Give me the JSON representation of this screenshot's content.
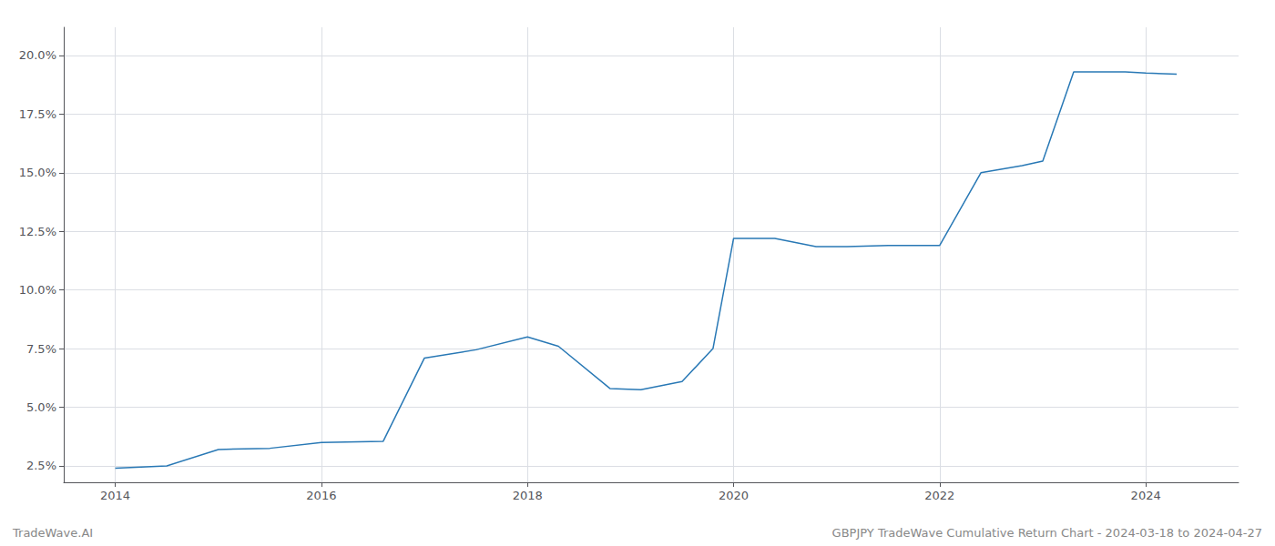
{
  "chart_data": {
    "type": "line",
    "x": [
      2014.0,
      2014.5,
      2015.0,
      2015.5,
      2016.0,
      2016.6,
      2017.0,
      2017.5,
      2018.0,
      2018.3,
      2018.8,
      2019.1,
      2019.5,
      2019.8,
      2020.0,
      2020.4,
      2020.8,
      2021.1,
      2021.5,
      2022.0,
      2022.4,
      2022.8,
      2023.0,
      2023.3,
      2023.8,
      2024.0,
      2024.3
    ],
    "values": [
      2.4,
      2.5,
      3.2,
      3.25,
      3.5,
      3.55,
      7.1,
      7.45,
      8.0,
      7.6,
      5.8,
      5.75,
      6.1,
      7.5,
      12.2,
      12.2,
      11.85,
      11.85,
      11.9,
      11.9,
      15.0,
      15.3,
      15.5,
      19.3,
      19.3,
      19.25,
      19.2
    ],
    "color": "#2878b5",
    "xlim": [
      2013.5,
      2024.9
    ],
    "xticks": [
      2014,
      2016,
      2018,
      2020,
      2022,
      2024
    ],
    "ylim": [
      1.8,
      21.2
    ],
    "yticks": [
      {
        "value": 2.5,
        "label": "2.5%"
      },
      {
        "value": 5.0,
        "label": "5.0%"
      },
      {
        "value": 7.5,
        "label": "7.5%"
      },
      {
        "value": 10.0,
        "label": "10.0%"
      },
      {
        "value": 12.5,
        "label": "12.5%"
      },
      {
        "value": 15.0,
        "label": "15.0%"
      },
      {
        "value": 17.5,
        "label": "17.5%"
      },
      {
        "value": 20.0,
        "label": "20.0%"
      }
    ],
    "grid": true,
    "annotations": [
      "TradeWave.AI",
      "GBPJPY TradeWave Cumulative Return Chart - 2024-03-18 to 2024-04-27"
    ]
  }
}
